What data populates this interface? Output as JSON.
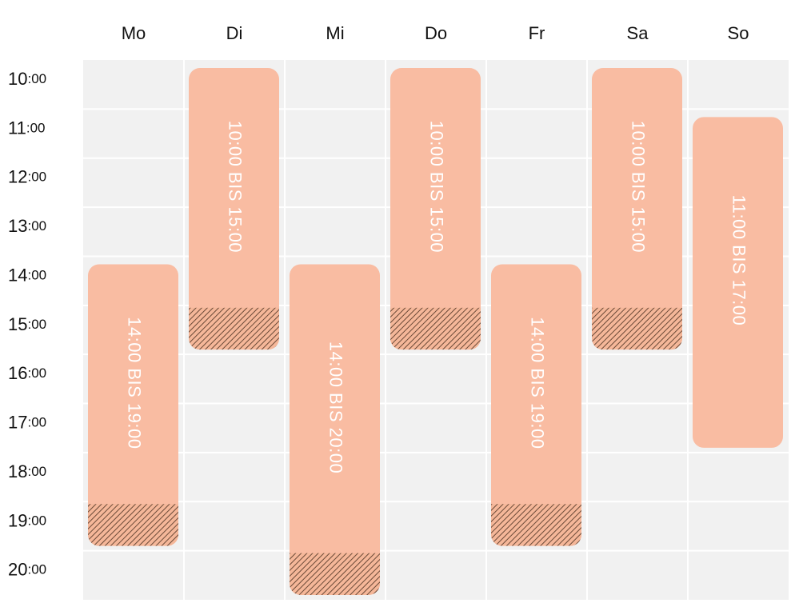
{
  "days": [
    "Mo",
    "Di",
    "Mi",
    "Do",
    "Fr",
    "Sa",
    "So"
  ],
  "hours": [
    "10:00",
    "11:00",
    "12:00",
    "13:00",
    "14:00",
    "15:00",
    "16:00",
    "17:00",
    "18:00",
    "19:00",
    "20:00"
  ],
  "events": [
    {
      "label": "14:00 BIS 19:00",
      "hatched": true
    },
    {
      "label": "10:00 BIS 15:00",
      "hatched": true
    },
    {
      "label": "14:00 BIS 20:00",
      "hatched": true
    },
    {
      "label": "10:00 BIS 15:00",
      "hatched": true
    },
    {
      "label": "14:00 BIS 19:00",
      "hatched": true
    },
    {
      "label": "10:00 BIS 15:00",
      "hatched": true
    },
    {
      "label": "11:00 BIS 17:00",
      "hatched": false
    }
  ]
}
